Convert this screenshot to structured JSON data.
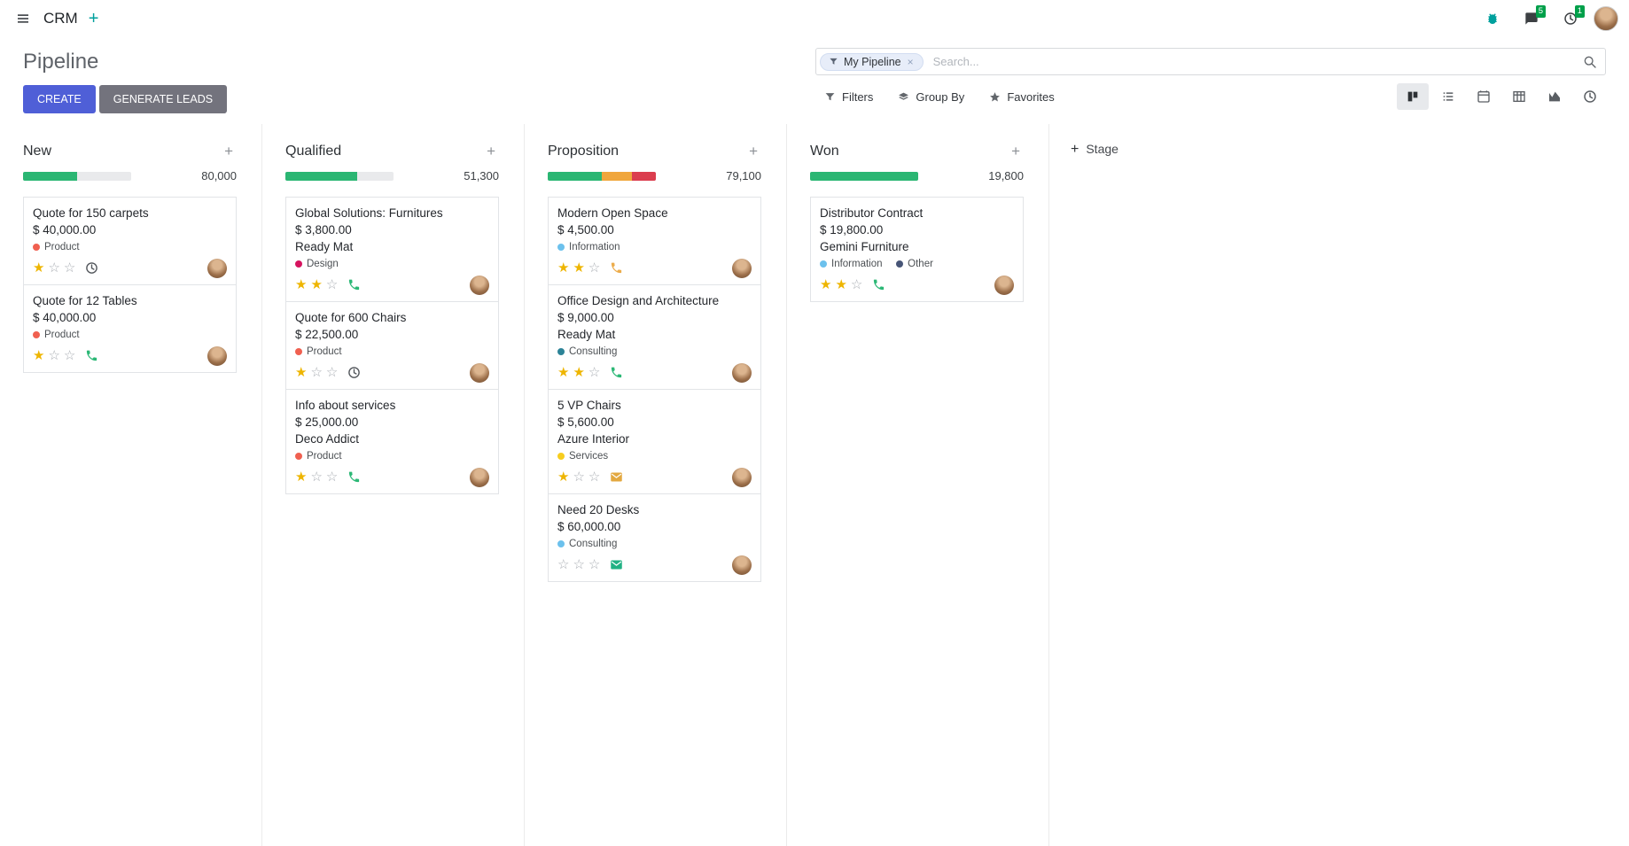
{
  "icons": {
    "plus": "+",
    "close": "×"
  },
  "colors": {
    "accent_teal": "#00a09d",
    "primary_button": "#4f5fd7",
    "secondary_button": "#73737d",
    "badge_green": "#00a04a",
    "star_gold": "#eeb500",
    "progress_success": "#2bb673",
    "progress_warning": "#f0a63c",
    "progress_danger": "#db3d4e"
  },
  "navbar": {
    "app_name": "CRM",
    "messages_badge": "5",
    "activities_badge": "1"
  },
  "control_panel": {
    "title": "Pipeline",
    "buttons": {
      "create": "CREATE",
      "generate_leads": "GENERATE LEADS"
    },
    "search": {
      "facet_label": "My Pipeline",
      "placeholder": "Search..."
    },
    "filter_buttons": {
      "filters": "Filters",
      "group_by": "Group By",
      "favorites": "Favorites"
    },
    "view_switcher": {
      "active": "kanban",
      "views": [
        "kanban",
        "list",
        "calendar",
        "pivot",
        "graph",
        "activity"
      ]
    }
  },
  "board": {
    "add_stage_label": "Stage",
    "columns": [
      {
        "name": "New",
        "count": "80,000",
        "progress": [
          {
            "color": "#2bb673",
            "pct": 50
          }
        ],
        "cards": [
          {
            "title": "Quote for 150 carpets",
            "amount": "$ 40,000.00",
            "tags": [
              {
                "label": "Product",
                "color": "#f06050"
              }
            ],
            "stars": 1,
            "activity": {
              "icon": "clock-icon",
              "color": "#53575c"
            }
          },
          {
            "title": "Quote for 12 Tables",
            "amount": "$ 40,000.00",
            "tags": [
              {
                "label": "Product",
                "color": "#f06050"
              }
            ],
            "stars": 1,
            "activity": {
              "icon": "phone-icon",
              "color": "#2cb876"
            }
          }
        ]
      },
      {
        "name": "Qualified",
        "count": "51,300",
        "progress": [
          {
            "color": "#2bb673",
            "pct": 66
          }
        ],
        "cards": [
          {
            "title": "Global Solutions: Furnitures",
            "amount": "$ 3,800.00",
            "partner": "Ready Mat",
            "tags": [
              {
                "label": "Design",
                "color": "#d6145f"
              }
            ],
            "stars": 2,
            "activity": {
              "icon": "phone-icon",
              "color": "#2cb876"
            }
          },
          {
            "title": "Quote for 600 Chairs",
            "amount": "$ 22,500.00",
            "tags": [
              {
                "label": "Product",
                "color": "#f06050"
              }
            ],
            "stars": 1,
            "activity": {
              "icon": "clock-icon",
              "color": "#53575c"
            }
          },
          {
            "title": "Info about services",
            "amount": "$ 25,000.00",
            "partner": "Deco Addict",
            "tags": [
              {
                "label": "Product",
                "color": "#f06050"
              }
            ],
            "stars": 1,
            "activity": {
              "icon": "phone-icon",
              "color": "#2cb876"
            }
          }
        ]
      },
      {
        "name": "Proposition",
        "count": "79,100",
        "progress": [
          {
            "color": "#2bb673",
            "pct": 50
          },
          {
            "color": "#f0a63c",
            "pct": 28
          },
          {
            "color": "#db3d4e",
            "pct": 22
          }
        ],
        "cards": [
          {
            "title": "Modern Open Space",
            "amount": "$ 4,500.00",
            "tags": [
              {
                "label": "Information",
                "color": "#6cc1ed"
              }
            ],
            "stars": 2,
            "activity": {
              "icon": "phone-icon",
              "color": "#ecac4b"
            }
          },
          {
            "title": "Office Design and Architecture",
            "amount": "$ 9,000.00",
            "partner": "Ready Mat",
            "tags": [
              {
                "label": "Consulting",
                "color": "#2c8397"
              }
            ],
            "stars": 2,
            "activity": {
              "icon": "phone-icon",
              "color": "#2cb876"
            }
          },
          {
            "title": "5 VP Chairs",
            "amount": "$ 5,600.00",
            "partner": "Azure Interior",
            "tags": [
              {
                "label": "Services",
                "color": "#f7cd1f"
              }
            ],
            "stars": 1,
            "activity": {
              "icon": "mail-icon",
              "color": "#e3a840"
            }
          },
          {
            "title": "Need 20 Desks",
            "amount": "$ 60,000.00",
            "tags": [
              {
                "label": "Consulting",
                "color": "#6cc1ed"
              }
            ],
            "stars": 0,
            "activity": {
              "icon": "mail-icon",
              "color": "#21b184"
            }
          }
        ]
      },
      {
        "name": "Won",
        "count": "19,800",
        "progress": [
          {
            "color": "#2bb673",
            "pct": 100
          }
        ],
        "cards": [
          {
            "title": "Distributor Contract",
            "amount": "$ 19,800.00",
            "partner": "Gemini Furniture",
            "tags": [
              {
                "label": "Information",
                "color": "#6cc1ed"
              },
              {
                "label": "Other",
                "color": "#475577"
              }
            ],
            "stars": 2,
            "activity": {
              "icon": "phone-icon",
              "color": "#2cb876"
            }
          }
        ]
      }
    ]
  }
}
